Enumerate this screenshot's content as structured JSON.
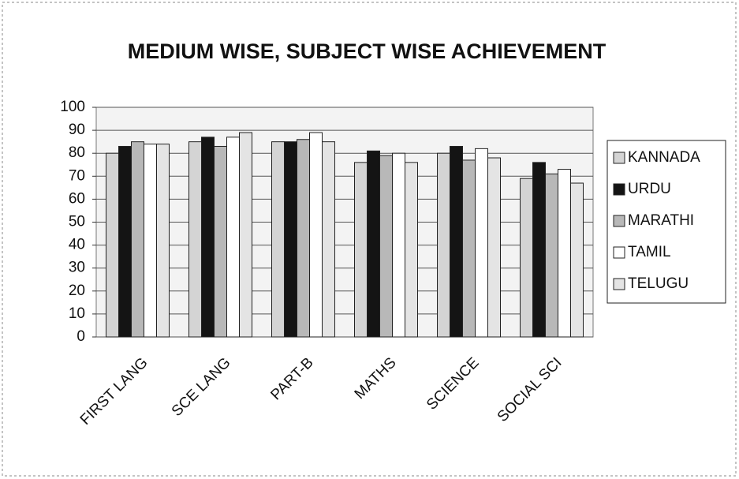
{
  "chart_data": {
    "type": "bar",
    "title": "MEDIUM WISE, SUBJECT WISE  ACHIEVEMENT",
    "categories": [
      "FIRST  LANG",
      "SCE LANG",
      "PART-B",
      "MATHS",
      "SCIENCE",
      "SOCIAL  SCI"
    ],
    "series": [
      {
        "name": "KANNADA",
        "color": "#d4d4d4",
        "values": [
          80,
          85,
          85,
          76,
          80,
          69
        ]
      },
      {
        "name": "URDU",
        "color": "#141414",
        "values": [
          83,
          87,
          85,
          81,
          83,
          76
        ]
      },
      {
        "name": "MARATHI",
        "color": "#b8b8b8",
        "values": [
          85,
          83,
          86,
          79,
          77,
          71
        ]
      },
      {
        "name": "TAMIL",
        "color": "#ffffff",
        "values": [
          84,
          87,
          89,
          80,
          82,
          73
        ]
      },
      {
        "name": "TELUGU",
        "color": "#e4e4e4",
        "values": [
          84,
          89,
          85,
          76,
          78,
          67
        ]
      }
    ],
    "ylim": [
      0,
      100
    ],
    "yticks": [
      0,
      10,
      20,
      30,
      40,
      50,
      60,
      70,
      80,
      90,
      100
    ],
    "grid": true,
    "legend": "right"
  }
}
